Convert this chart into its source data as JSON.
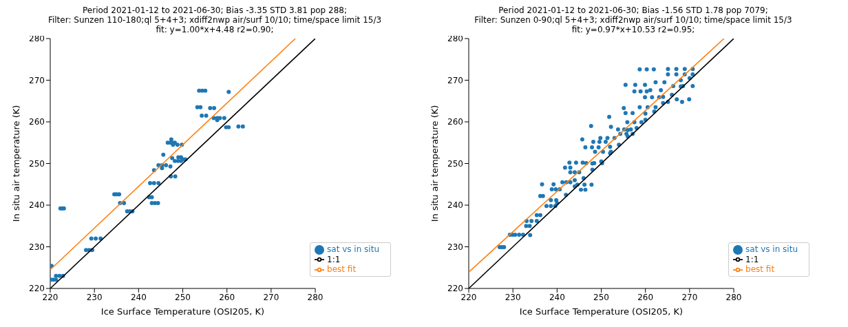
{
  "chart_data": [
    {
      "type": "scatter",
      "title": "Period 2021-01-12 to 2021-06-30; Bias -3.35 STD 3.81 pop 288;\nFilter: Sunzen 110-180;ql 5+4+3; xdiff2nwp air/surf 10/10; time/space limit 15/3\nfit: y=1.00*x+4.48 r2=0.90;",
      "xlabel": "Ice Surface Temperature (OSI205, K)",
      "ylabel": "In situ air temperature (K)",
      "xlim": [
        220,
        280
      ],
      "xticks": [
        220,
        230,
        240,
        250,
        260,
        270,
        280
      ],
      "ylim": [
        220,
        280
      ],
      "yticks": [
        220,
        230,
        240,
        250,
        260,
        270,
        280
      ],
      "legend": "bottom right",
      "series": [
        {
          "name": "sat vs in situ",
          "marker": "circle",
          "color": "#1f77b4",
          "x": [
            220.3,
            220.1,
            220.7,
            221.3,
            221.3,
            222.1,
            222.9,
            222.3,
            222.7,
            223.1,
            228.1,
            228.8,
            229.5,
            229.3,
            230.3,
            231.4,
            234.5,
            235.0,
            235.6,
            235.8,
            236.7,
            237.4,
            238.0,
            238.6,
            242.4,
            243.0,
            243.0,
            243.7,
            244.4,
            242.6,
            243.5,
            244.5,
            243.5,
            244.5,
            245.3,
            246.2,
            245.3,
            245.6,
            246.6,
            247.2,
            247.7,
            248.2,
            247.4,
            247.8,
            248.8,
            249.8,
            247.3,
            248.3,
            247.2,
            247.6,
            248.2,
            248.9,
            249.6,
            249.0,
            249.6,
            250.1,
            250.6,
            253.3,
            254.0,
            253.7,
            254.4,
            255.1,
            254.3,
            255.3,
            256.2,
            257.1,
            257.0,
            257.8,
            257.8,
            258.4,
            259.4,
            259.8,
            260.4,
            260.4,
            262.6,
            263.6
          ],
          "values": [
            225.4,
            222.1,
            222.1,
            222.1,
            223.0,
            223.0,
            223.0,
            239.2,
            239.2,
            239.2,
            229.2,
            229.2,
            229.2,
            232.0,
            232.0,
            232.0,
            242.6,
            242.6,
            242.6,
            240.5,
            240.5,
            238.5,
            238.5,
            238.5,
            241.9,
            241.9,
            240.5,
            240.5,
            240.5,
            245.3,
            245.3,
            245.3,
            248.4,
            249.6,
            249.6,
            249.6,
            248.9,
            252.1,
            255.0,
            255.0,
            255.0,
            255.0,
            255.8,
            254.5,
            254.5,
            254.5,
            246.9,
            246.9,
            249.3,
            251.3,
            250.6,
            250.6,
            250.6,
            251.5,
            251.5,
            251.0,
            251.0,
            263.5,
            263.5,
            267.5,
            267.5,
            267.5,
            261.5,
            261.5,
            263.3,
            263.3,
            260.9,
            260.9,
            260.4,
            260.9,
            260.9,
            258.7,
            258.7,
            267.2,
            258.9,
            258.9
          ]
        },
        {
          "name": "1:1",
          "type": "line",
          "color": "#000000",
          "x": [
            220,
            280
          ],
          "values": [
            220,
            280
          ]
        },
        {
          "name": "best fit",
          "type": "line",
          "color": "#ff7f0e",
          "x": [
            220,
            275.5
          ],
          "values": [
            224.5,
            280
          ]
        }
      ]
    },
    {
      "type": "scatter",
      "title": "Period 2021-01-12 to 2021-06-30; Bias -1.56 STD 1.78 pop 7079;\nFilter: Sunzen 0-90;ql 5+4+3; xdiff2nwp air/surf 10/10; time/space limit 15/3\nfit: y=0.97*x+10.53 r2=0.95;",
      "xlabel": "Ice Surface Temperature (OSI205, K)",
      "ylabel": "In situ air temperature (K)",
      "xlim": [
        220,
        280
      ],
      "xticks": [
        220,
        230,
        240,
        250,
        260,
        270,
        280
      ],
      "ylim": [
        220,
        280
      ],
      "yticks": [
        220,
        230,
        240,
        250,
        260,
        270,
        280
      ],
      "legend": "bottom right",
      "series": [
        {
          "name": "sat vs in situ",
          "marker": "circle",
          "color": "#1f77b4",
          "x": [
            227.0,
            227.5,
            228.0,
            229.3,
            229.9,
            230.5,
            231.4,
            232.3,
            233.9,
            233.1,
            234.2,
            235.4,
            233.0,
            233.8,
            235.4,
            236.2,
            236.2,
            236.8,
            236.6,
            237.6,
            238.6,
            239.6,
            238.6,
            239.8,
            239.2,
            238.8,
            239.7,
            240.6,
            241.2,
            242.1,
            243.0,
            241.8,
            243.0,
            242.8,
            244.3,
            245.8,
            243.0,
            244.0,
            245.0,
            244.6,
            246.2,
            247.8,
            245.4,
            246.4,
            245.7,
            246.4,
            247.9,
            249.4,
            246.6,
            248.4,
            250.2,
            247.7,
            248.2,
            249.6,
            251.0,
            248.6,
            250.4,
            252.2,
            249.8,
            251.4,
            253.0,
            251.8,
            252.2,
            253.8,
            255.2,
            256.7,
            254.3,
            255.7,
            257.1,
            255.1,
            255.5,
            257.1,
            255.5,
            257.7,
            259.9,
            255.9,
            257.5,
            259.1,
            257.5,
            258.9,
            260.3,
            258.7,
            260.3,
            261.9,
            258.7,
            260.5,
            262.3,
            259.9,
            261.5,
            263.1,
            261.1,
            263.5,
            262.3,
            264.3,
            265.1,
            267.0,
            268.9,
            270.7,
            265.1,
            267.0,
            268.9,
            270.7,
            266.3,
            268.5,
            270.7,
            267.1,
            269.9,
            265.1,
            268.3,
            240,
            242,
            244,
            246,
            248,
            250,
            252,
            254,
            256,
            258,
            260,
            262,
            264,
            266,
            268,
            270,
            244,
            248,
            252,
            256,
            260,
            264,
            268
          ],
          "values": [
            229.9,
            229.9,
            229.9,
            232.9,
            232.9,
            232.9,
            232.9,
            232.9,
            232.8,
            236.2,
            236.2,
            236.2,
            235.0,
            235.0,
            237.6,
            237.6,
            242.2,
            242.2,
            245.0,
            239.8,
            239.8,
            239.8,
            241.2,
            241.2,
            245.0,
            243.8,
            243.8,
            243.8,
            245.5,
            245.5,
            245.5,
            249.0,
            249.0,
            250.2,
            250.2,
            250.2,
            247.9,
            247.9,
            247.9,
            244.9,
            244.9,
            244.9,
            243.7,
            243.7,
            255.8,
            253.9,
            253.9,
            253.9,
            250.1,
            250.1,
            250.1,
            259.0,
            255.2,
            255.2,
            255.2,
            252.8,
            252.8,
            252.8,
            256.1,
            256.1,
            256.1,
            261.2,
            258.8,
            258.2,
            258.2,
            258.2,
            257.1,
            257.1,
            257.1,
            263.3,
            262.1,
            262.1,
            268.9,
            268.9,
            268.9,
            259.9,
            259.9,
            259.9,
            267.3,
            267.3,
            267.3,
            272.6,
            272.6,
            272.6,
            263.5,
            263.5,
            263.5,
            265.9,
            265.9,
            265.9,
            267.6,
            267.6,
            269.5,
            269.5,
            272.7,
            272.7,
            272.7,
            272.7,
            271.4,
            271.4,
            271.4,
            271.4,
            268.6,
            268.6,
            268.6,
            265.4,
            265.4,
            264.8,
            264.8,
            240.5,
            242.5,
            244.5,
            246.5,
            248.5,
            250.5,
            252.5,
            254.5,
            256.5,
            258.5,
            260.5,
            262.5,
            264.5,
            266.5,
            268.5,
            270.5,
            246,
            250,
            254,
            258,
            262,
            266,
            270
          ]
        },
        {
          "name": "1:1",
          "type": "line",
          "color": "#000000",
          "x": [
            220,
            280
          ],
          "values": [
            220,
            280
          ]
        },
        {
          "name": "best fit",
          "type": "line",
          "color": "#ff7f0e",
          "x": [
            220,
            277.8
          ],
          "values": [
            223.9,
            280
          ]
        }
      ]
    }
  ]
}
